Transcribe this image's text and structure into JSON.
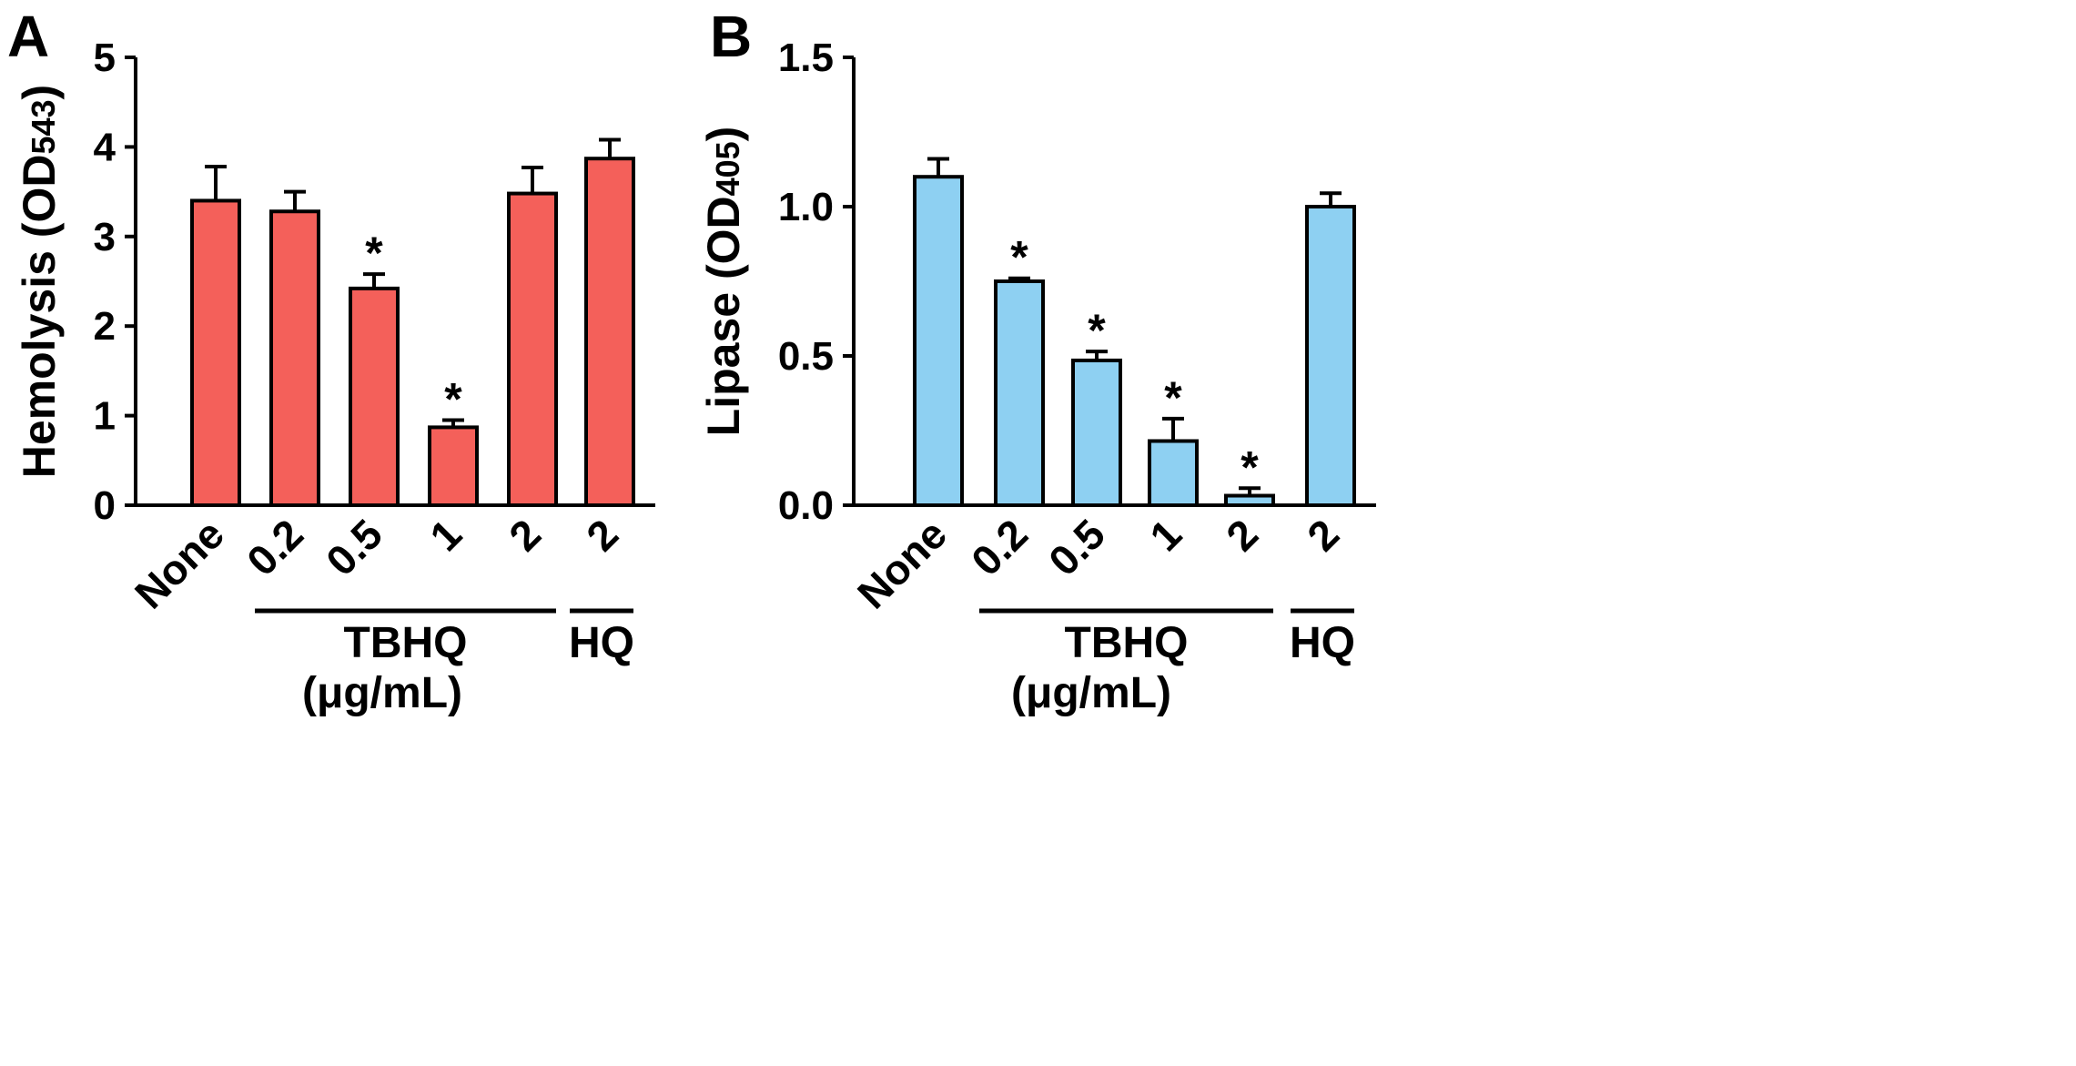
{
  "chart_data": [
    {
      "panel_label": "A",
      "type": "bar",
      "ylabel_main": "Hemolysis (OD",
      "ylabel_sub": "543",
      "ylabel_close": ")",
      "ylim": [
        0,
        5
      ],
      "yticks": [
        "0",
        "1",
        "2",
        "3",
        "4",
        "5"
      ],
      "ytick_values": [
        0,
        1,
        2,
        3,
        4,
        5
      ],
      "categories": [
        "None",
        "0.2",
        "0.5",
        "1",
        "2",
        "2"
      ],
      "values": [
        3.4,
        3.28,
        2.42,
        0.87,
        3.48,
        3.87
      ],
      "errors": [
        0.38,
        0.22,
        0.16,
        0.08,
        0.29,
        0.21
      ],
      "significant": [
        false,
        false,
        true,
        true,
        false,
        false
      ],
      "marker": "*",
      "bar_color": "#f4605a",
      "groups": [
        {
          "label": "TBHQ",
          "first": 1,
          "last": 4
        },
        {
          "label": "HQ",
          "first": 5,
          "last": 5
        }
      ],
      "unit_label": "(μg/mL)"
    },
    {
      "panel_label": "B",
      "type": "bar",
      "ylabel_main": "Lipase (OD",
      "ylabel_sub": "405",
      "ylabel_close": ")",
      "ylim": [
        0,
        1.5
      ],
      "yticks": [
        "0.0",
        "0.5",
        "1.0",
        "1.5"
      ],
      "ytick_values": [
        0,
        0.5,
        1.0,
        1.5
      ],
      "categories": [
        "None",
        "0.2",
        "0.5",
        "1",
        "2",
        "2"
      ],
      "values": [
        1.1,
        0.75,
        0.485,
        0.215,
        0.032,
        1.0
      ],
      "errors": [
        0.06,
        0.01,
        0.03,
        0.075,
        0.025,
        0.045
      ],
      "significant": [
        false,
        true,
        true,
        true,
        true,
        false
      ],
      "marker": "*",
      "bar_color": "#8ed0f2",
      "groups": [
        {
          "label": "TBHQ",
          "first": 1,
          "last": 4
        },
        {
          "label": "HQ",
          "first": 5,
          "last": 5
        }
      ],
      "unit_label": "(μg/mL)"
    }
  ]
}
